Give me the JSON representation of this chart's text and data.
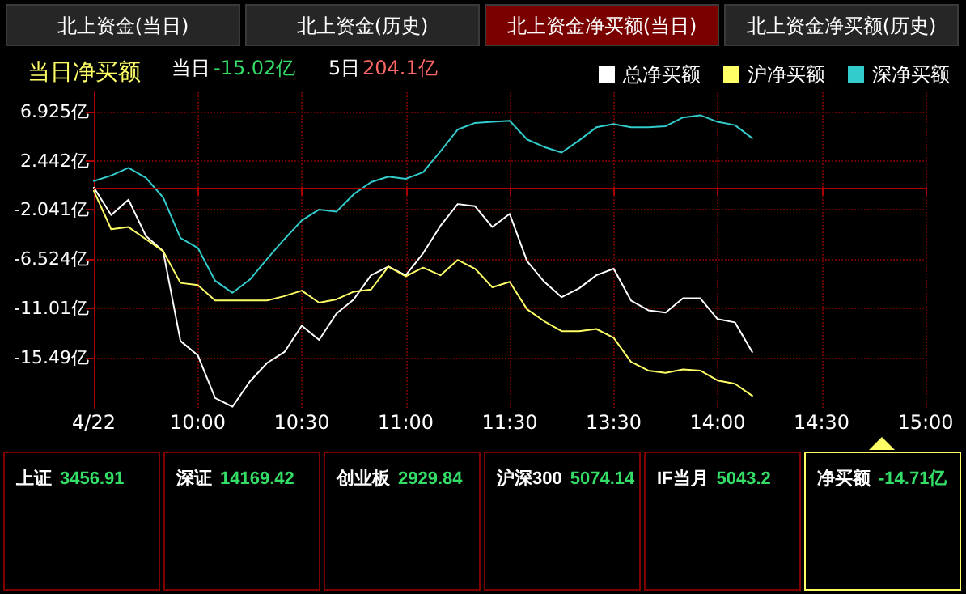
{
  "chart_data": [
    {
      "type": "line",
      "title": "当日净买额",
      "annotations": [
        "北上资金(当日)",
        "北上资金(历史)",
        "北上资金净买额(当日)",
        "北上资金净买额(历史)",
        "当日",
        "-15.02亿",
        "5日",
        "204.1亿"
      ],
      "categories": [
        "4/22",
        null,
        null,
        null,
        null,
        null,
        "10:00",
        null,
        null,
        null,
        null,
        null,
        "10:30",
        null,
        null,
        null,
        null,
        null,
        "11:00",
        null,
        null,
        null,
        null,
        null,
        "11:30",
        null,
        null,
        null,
        null,
        null,
        "13:30",
        null,
        null,
        null,
        null,
        null,
        "14:00",
        null,
        null,
        null,
        null,
        null,
        "14:30",
        null,
        null,
        null,
        null,
        null,
        "15:00"
      ],
      "ylim": [
        -20.1,
        8.7
      ],
      "yticks": [
        {
          "value": -15.49,
          "label": "-15.49亿"
        },
        {
          "value": -11.01,
          "label": "-11.01亿"
        },
        {
          "value": -6.524,
          "label": "-6.524亿"
        },
        {
          "value": -2.041,
          "label": "-2.041亿"
        },
        {
          "value": 2.442,
          "label": "2.442亿"
        },
        {
          "value": 6.925,
          "label": "6.925亿"
        }
      ],
      "grid": true,
      "legend": "top right",
      "ref_lines": [
        {
          "axis": "y",
          "value": 0,
          "color": "#aa0000"
        }
      ],
      "series": [
        {
          "name": "总净买额",
          "color": "#ffffff",
          "values": [
            0,
            -2.5,
            -1.1,
            -4.4,
            -5.8,
            -14,
            -15.3,
            -19.2,
            -20,
            -17.7,
            -16,
            -15,
            -12.6,
            -13.9,
            -11.5,
            -10.2,
            -8,
            -7.2,
            -8,
            -6,
            -3.5,
            -1.5,
            -1.7,
            -3.6,
            -2.4,
            -6.7,
            -8.6,
            -10,
            -9.2,
            -8,
            -7.4,
            -10.3,
            -11.2,
            -11.4,
            -10.1,
            -10.1,
            -12,
            -12.3,
            -15,
            null,
            null,
            null,
            null,
            null,
            null,
            null,
            null,
            null,
            null
          ]
        },
        {
          "name": "沪净买额",
          "color": "#ffff66",
          "values": [
            -0.3,
            -3.8,
            -3.6,
            -4.7,
            -5.8,
            -8.7,
            -8.9,
            -10.3,
            -10.3,
            -10.3,
            -10.3,
            -9.9,
            -9.4,
            -10.5,
            -10.2,
            -9.5,
            -9.3,
            -7.2,
            -8.1,
            -7.3,
            -8,
            -6.6,
            -7.4,
            -9.1,
            -8.6,
            -11.1,
            -12.2,
            -13.1,
            -13.1,
            -12.9,
            -13.7,
            -15.9,
            -16.7,
            -16.9,
            -16.6,
            -16.7,
            -17.6,
            -17.9,
            -19,
            null,
            null,
            null,
            null,
            null,
            null,
            null,
            null,
            null,
            null
          ]
        },
        {
          "name": "深净买额",
          "color": "#33cccc",
          "values": [
            0.6,
            1.1,
            1.8,
            0.9,
            -0.9,
            -4.6,
            -5.5,
            -8.5,
            -9.6,
            -8.4,
            -6.5,
            -4.7,
            -3,
            -2,
            -2.2,
            -0.6,
            0.5,
            1,
            0.8,
            1.4,
            3.3,
            5.3,
            5.9,
            6,
            6.1,
            4.4,
            3.7,
            3.2,
            4.3,
            5.5,
            5.8,
            5.5,
            5.5,
            5.6,
            6.4,
            6.6,
            6,
            5.7,
            4.5,
            null,
            null,
            null,
            null,
            null,
            null,
            null,
            null,
            null,
            null
          ]
        }
      ]
    },
    {
      "type": "other",
      "title": "上证",
      "subtitle": "3456.91"
    },
    {
      "type": "other",
      "title": "深证",
      "subtitle": "14169.42"
    },
    {
      "type": "other",
      "title": "创业板",
      "subtitle": "2929.84"
    },
    {
      "type": "other",
      "title": "沪深300",
      "subtitle": "5074.14"
    },
    {
      "type": "other",
      "title": "IF当月",
      "subtitle": "5043.2"
    },
    {
      "type": "other",
      "title": "净买额",
      "subtitle": "-14.71亿"
    }
  ]
}
